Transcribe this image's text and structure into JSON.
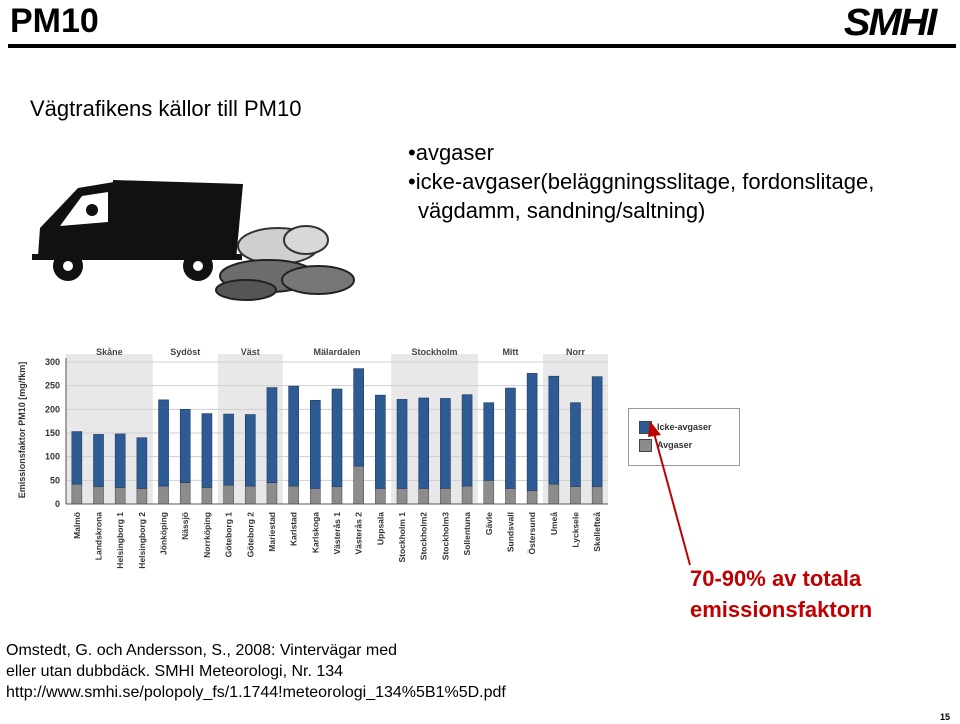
{
  "slide": {
    "title": "PM10",
    "logo": "SMHI",
    "subtitle": "Vägtrafikens källor till PM10",
    "bullets": [
      "•avgaser",
      "•icke-avgaser(beläggningsslitage, fordonslitage,",
      "vägdamm, sandning/saltning)"
    ],
    "callout": [
      "70-90% av totala",
      "emissionsfaktorn"
    ],
    "reference": [
      "Omstedt, G. och Andersson, S., 2008: Vintervägar med",
      "eller utan dubbdäck. SMHI Meteorologi, Nr. 134",
      "http://www.smhi.se/polopoly_fs/1.1744!meteorologi_134%5B1%5D.pdf"
    ],
    "page_number": "15"
  },
  "colors": {
    "icke_avgaser": "#2e5b94",
    "avgaser": "#8c8c8c",
    "callout": "#c00000",
    "shade": "#e8e8e8"
  },
  "chart_data": {
    "type": "bar",
    "stacked": true,
    "ylabel": "Emissionsfaktor PM10 [mg/fkm]",
    "ylim": [
      0,
      300
    ],
    "yticks": [
      0,
      50,
      100,
      150,
      200,
      250,
      300
    ],
    "grid": true,
    "categories": [
      "Malmö",
      "Landskrona",
      "Helsingborg 1",
      "Helsingborg 2",
      "Jönköping",
      "Nässjö",
      "Norrköping",
      "Göteborg 1",
      "Göteborg 2",
      "Mariestad",
      "Karlstad",
      "Karlskoga",
      "Västerås 1",
      "Västerås 2",
      "Uppsala",
      "Stockholm 1",
      "Stockholm2",
      "Stockholm3",
      "Sollentuna",
      "Gävle",
      "Sundsvall",
      "Östersund",
      "Umeå",
      "Lycksele",
      "Skellefteå"
    ],
    "regions": [
      {
        "name": "Skåne",
        "start": 0,
        "count": 4
      },
      {
        "name": "Sydöst",
        "start": 4,
        "count": 3
      },
      {
        "name": "Väst",
        "start": 7,
        "count": 3
      },
      {
        "name": "Mälardalen",
        "start": 10,
        "count": 5
      },
      {
        "name": "Stockholm",
        "start": 15,
        "count": 4
      },
      {
        "name": "Mitt",
        "start": 19,
        "count": 3
      },
      {
        "name": "Norr",
        "start": 22,
        "count": 3
      }
    ],
    "series": [
      {
        "name": "Avgaser",
        "values": [
          42,
          37,
          35,
          33,
          38,
          45,
          35,
          40,
          38,
          45,
          38,
          33,
          37,
          80,
          33,
          33,
          33,
          33,
          38,
          50,
          33,
          28,
          42,
          37,
          37
        ]
      },
      {
        "name": "Icke-avgaser",
        "values": [
          111,
          110,
          113,
          107,
          182,
          155,
          156,
          150,
          151,
          201,
          211,
          186,
          206,
          206,
          197,
          188,
          191,
          190,
          193,
          164,
          212,
          248,
          228,
          177,
          232
        ]
      }
    ],
    "legend": {
      "position": "right",
      "entries": [
        "Icke-avgaser",
        "Avgaser"
      ]
    }
  }
}
